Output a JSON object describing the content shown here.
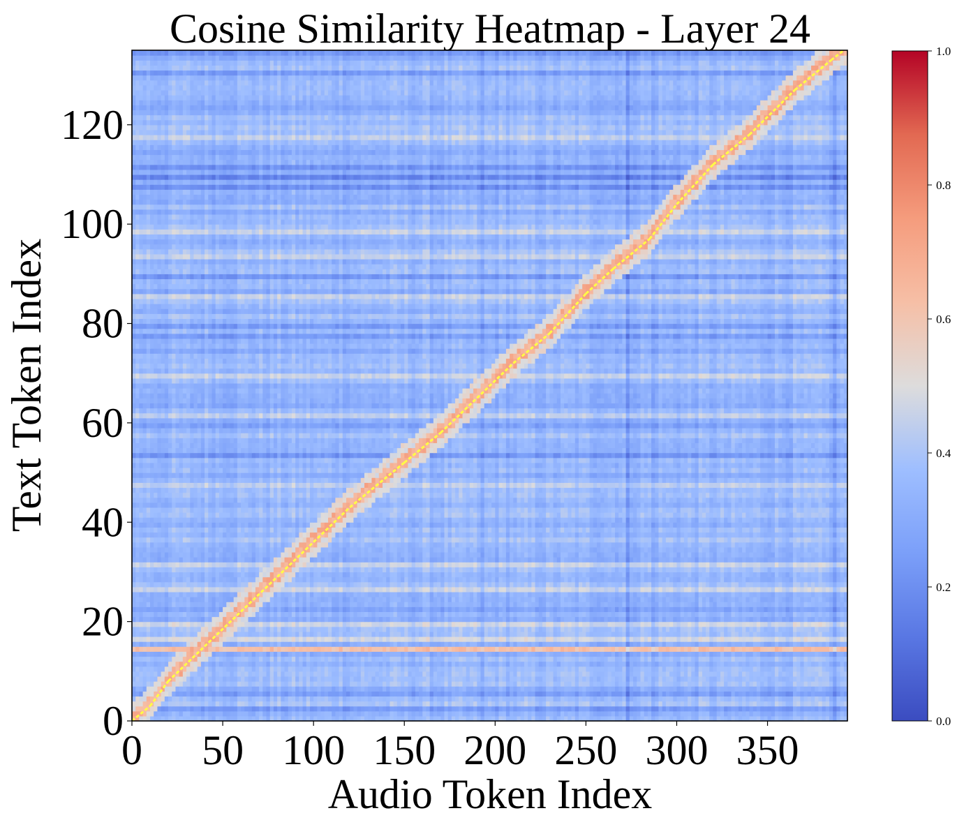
{
  "chart_data": {
    "type": "heatmap",
    "title": "Cosine Similarity Heatmap - Layer 24",
    "xlabel": "Audio Token Index",
    "ylabel": "Text Token Index",
    "x_cells": 394,
    "y_cells": 135,
    "xlim": [
      0,
      394
    ],
    "ylim": [
      0,
      135
    ],
    "xticks": [
      0,
      50,
      100,
      150,
      200,
      250,
      300,
      350
    ],
    "yticks": [
      0,
      20,
      40,
      60,
      80,
      100,
      120
    ],
    "colorbar": {
      "colormap": "coolwarm",
      "range": [
        0.0,
        1.0
      ],
      "ticks": [
        "0.0",
        "0.2",
        "0.4",
        "0.6",
        "0.8",
        "1.0"
      ]
    },
    "background_value_range": [
      0.2,
      0.45
    ],
    "diagonal_alignment": {
      "color": "#ffff44",
      "points": [
        [
          0,
          0
        ],
        [
          10,
          3
        ],
        [
          20,
          8
        ],
        [
          40,
          15
        ],
        [
          60,
          22
        ],
        [
          80,
          29
        ],
        [
          100,
          36
        ],
        [
          120,
          43
        ],
        [
          150,
          52
        ],
        [
          170,
          58
        ],
        [
          190,
          65
        ],
        [
          210,
          72
        ],
        [
          230,
          78
        ],
        [
          250,
          86
        ],
        [
          265,
          91
        ],
        [
          285,
          97
        ],
        [
          300,
          104
        ],
        [
          320,
          112
        ],
        [
          340,
          118
        ],
        [
          365,
          127
        ],
        [
          385,
          133
        ],
        [
          392,
          135
        ]
      ]
    },
    "strong_rows": [
      {
        "y": 14,
        "value": 0.62
      },
      {
        "y": 16,
        "value": 0.48
      },
      {
        "y": 19,
        "value": 0.47
      },
      {
        "y": 26,
        "value": 0.46
      },
      {
        "y": 31,
        "value": 0.46
      },
      {
        "y": 47,
        "value": 0.44
      },
      {
        "y": 61,
        "value": 0.44
      },
      {
        "y": 69,
        "value": 0.46
      },
      {
        "y": 85,
        "value": 0.45
      },
      {
        "y": 93,
        "value": 0.45
      },
      {
        "y": 98,
        "value": 0.46
      },
      {
        "y": 117,
        "value": 0.45
      }
    ],
    "weak_rows": [
      {
        "y": 2,
        "value": 0.24
      },
      {
        "y": 5,
        "value": 0.25
      },
      {
        "y": 22,
        "value": 0.27
      },
      {
        "y": 53,
        "value": 0.22
      },
      {
        "y": 59,
        "value": 0.26
      },
      {
        "y": 77,
        "value": 0.24
      },
      {
        "y": 79,
        "value": 0.24
      },
      {
        "y": 89,
        "value": 0.23
      },
      {
        "y": 107,
        "value": 0.2
      },
      {
        "y": 109,
        "value": 0.17
      },
      {
        "y": 111,
        "value": 0.21
      },
      {
        "y": 130,
        "value": 0.24
      },
      {
        "y": 134,
        "value": 0.23
      }
    ],
    "weak_columns": [
      {
        "x": 192,
        "value": 0.3
      },
      {
        "x": 272,
        "value": 0.24
      },
      {
        "x": 286,
        "value": 0.3
      },
      {
        "x": 386,
        "value": 0.27
      }
    ]
  }
}
